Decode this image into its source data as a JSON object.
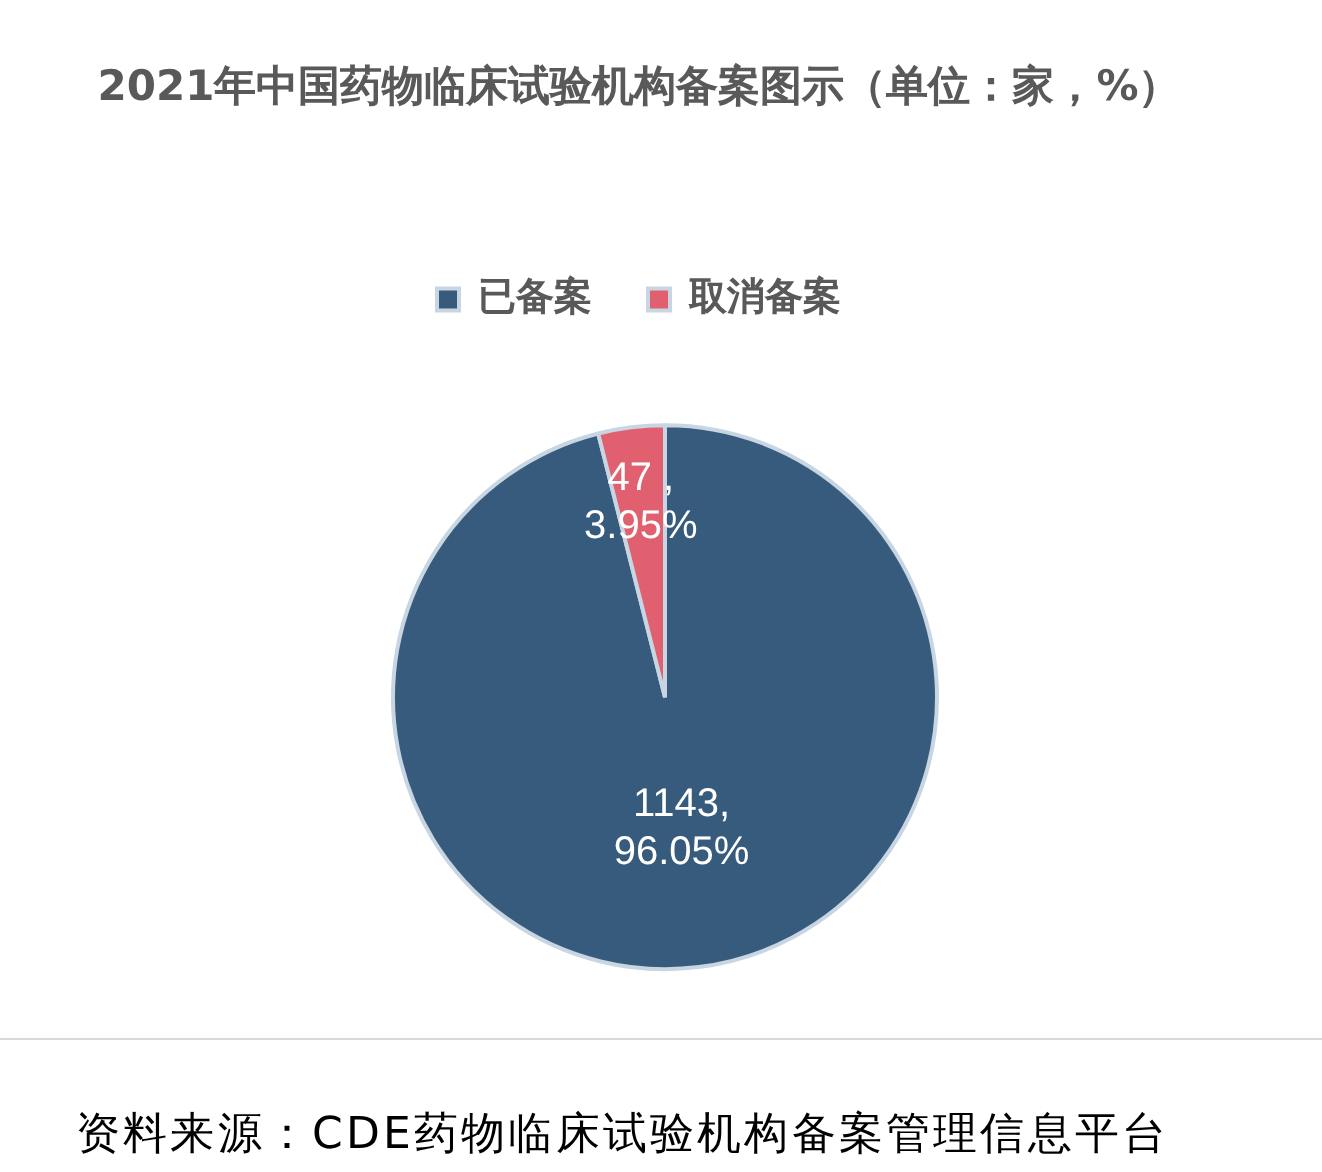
{
  "chart_data": {
    "type": "pie",
    "title": "2021年中国药物临床试验机构备案图示（单位：家，%）",
    "categories": [
      "已备案",
      "取消备案"
    ],
    "values": [
      1143,
      47
    ],
    "colors": [
      "#375b7d",
      "#e0606f"
    ],
    "value_labels": [
      "1143,\n96.05%",
      "47 ,\n3.95%"
    ],
    "legend": "top",
    "annotations": [
      "资料来源：CDE药物临床试验机构备案管理信息平台"
    ]
  }
}
